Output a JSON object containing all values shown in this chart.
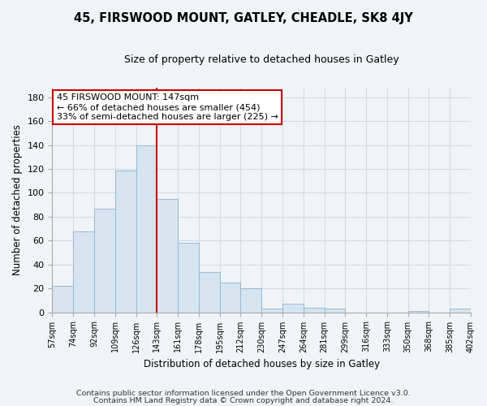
{
  "title": "45, FIRSWOOD MOUNT, GATLEY, CHEADLE, SK8 4JY",
  "subtitle": "Size of property relative to detached houses in Gatley",
  "xlabel": "Distribution of detached houses by size in Gatley",
  "ylabel": "Number of detached properties",
  "bar_color": "#d6e4f0",
  "bar_edge_color": "#9ab8d0",
  "categories": [
    "57sqm",
    "74sqm",
    "92sqm",
    "109sqm",
    "126sqm",
    "143sqm",
    "161sqm",
    "178sqm",
    "195sqm",
    "212sqm",
    "230sqm",
    "247sqm",
    "264sqm",
    "281sqm",
    "299sqm",
    "316sqm",
    "333sqm",
    "350sqm",
    "368sqm",
    "385sqm",
    "402sqm"
  ],
  "values": [
    22,
    68,
    87,
    119,
    140,
    95,
    58,
    34,
    25,
    20,
    3,
    7,
    4,
    3,
    0,
    0,
    0,
    1,
    0,
    3
  ],
  "vline_color": "#cc0000",
  "annotation_line1": "45 FIRSWOOD MOUNT: 147sqm",
  "annotation_line2": "← 66% of detached houses are smaller (454)",
  "annotation_line3": "33% of semi-detached houses are larger (225) →",
  "annotation_box_color": "#ffffff",
  "annotation_box_edge": "#cc0000",
  "ylim": [
    0,
    188
  ],
  "yticks": [
    0,
    20,
    40,
    60,
    80,
    100,
    120,
    140,
    160,
    180
  ],
  "footnote1": "Contains HM Land Registry data © Crown copyright and database right 2024.",
  "footnote2": "Contains public sector information licensed under the Open Government Licence v3.0.",
  "background_color": "#f0f4f8",
  "grid_color": "#d0dce8"
}
